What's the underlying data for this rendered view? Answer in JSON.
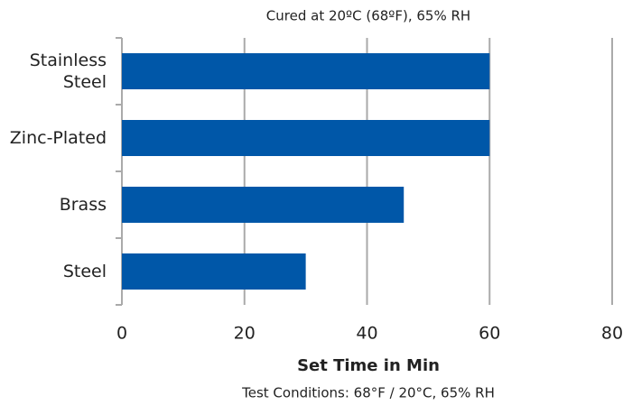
{
  "chart_data": {
    "type": "bar",
    "orientation": "horizontal",
    "title": "Cured at 20ºC (68ºF), 65% RH",
    "categories": [
      "Stainless Steel",
      "Zinc-Plated",
      "Brass",
      "Steel"
    ],
    "values": [
      60,
      60,
      46,
      30
    ],
    "color": "#0057a8",
    "xlim": [
      0,
      80
    ],
    "xticks": [
      0,
      20,
      40,
      60,
      80
    ],
    "xlabel": "Set Time in Min",
    "note": "Test Conditions: 68°F / 20°C, 65% RH",
    "grid": true
  }
}
